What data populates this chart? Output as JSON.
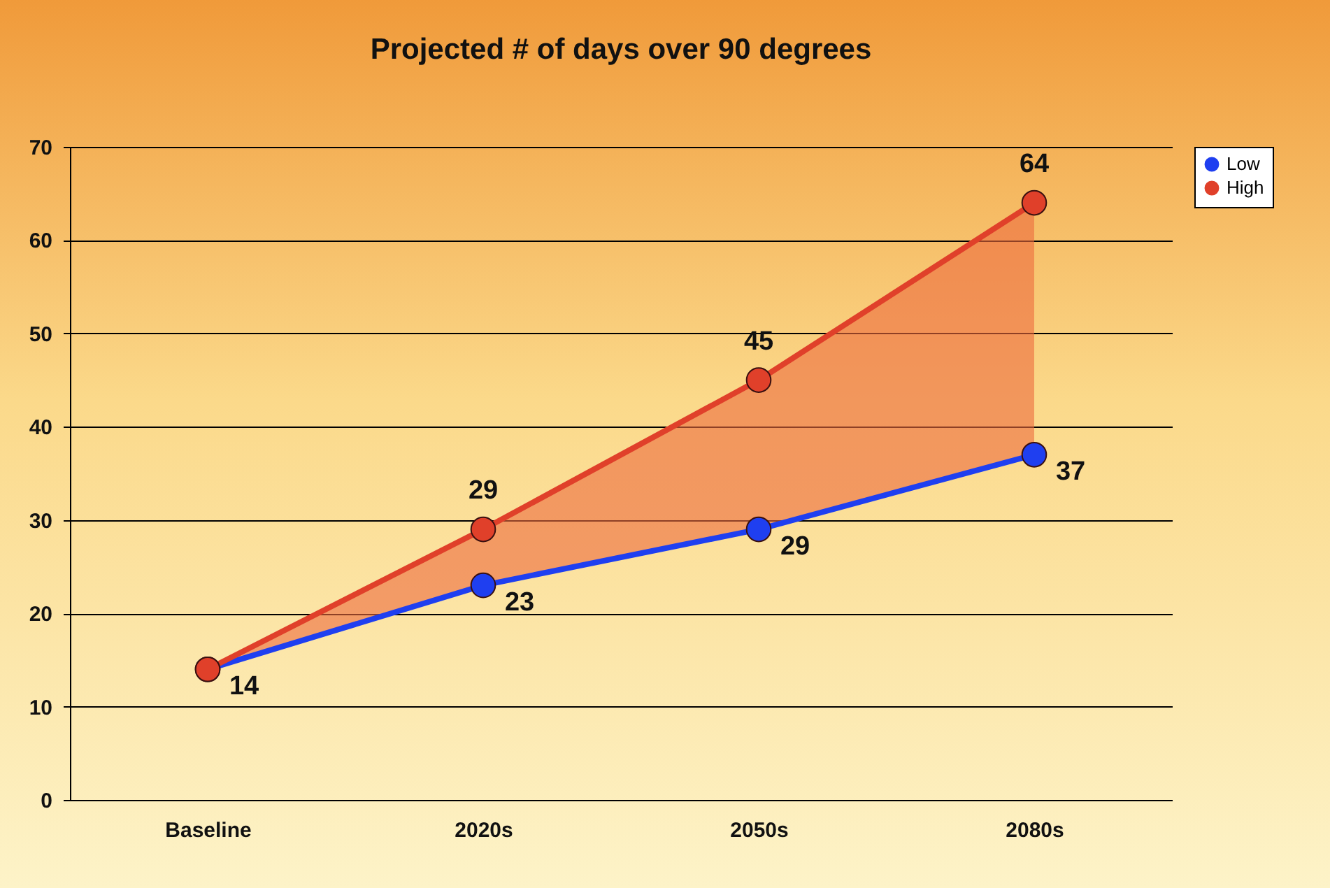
{
  "chart_data": {
    "type": "line",
    "title": "Projected # of days over 90 degrees",
    "categories": [
      "Baseline",
      "2020s",
      "2050s",
      "2080s"
    ],
    "series": [
      {
        "name": "Low",
        "color": "#1f3ff0",
        "values": [
          14,
          23,
          29,
          37
        ],
        "value_labels": [
          "14",
          "23",
          "29",
          "37"
        ]
      },
      {
        "name": "High",
        "color": "#e0402a",
        "values": [
          14,
          29,
          45,
          64
        ],
        "value_labels": [
          null,
          "29",
          "45",
          "64"
        ],
        "lower": [
          14,
          23,
          29,
          37
        ],
        "upper": [
          14,
          29,
          45,
          64
        ]
      }
    ],
    "ylim": [
      0,
      70
    ],
    "yticks": [
      0,
      10,
      20,
      30,
      40,
      50,
      60,
      70
    ],
    "grid": "y",
    "legend": "right",
    "marker": "circle",
    "line_style": "solid"
  }
}
